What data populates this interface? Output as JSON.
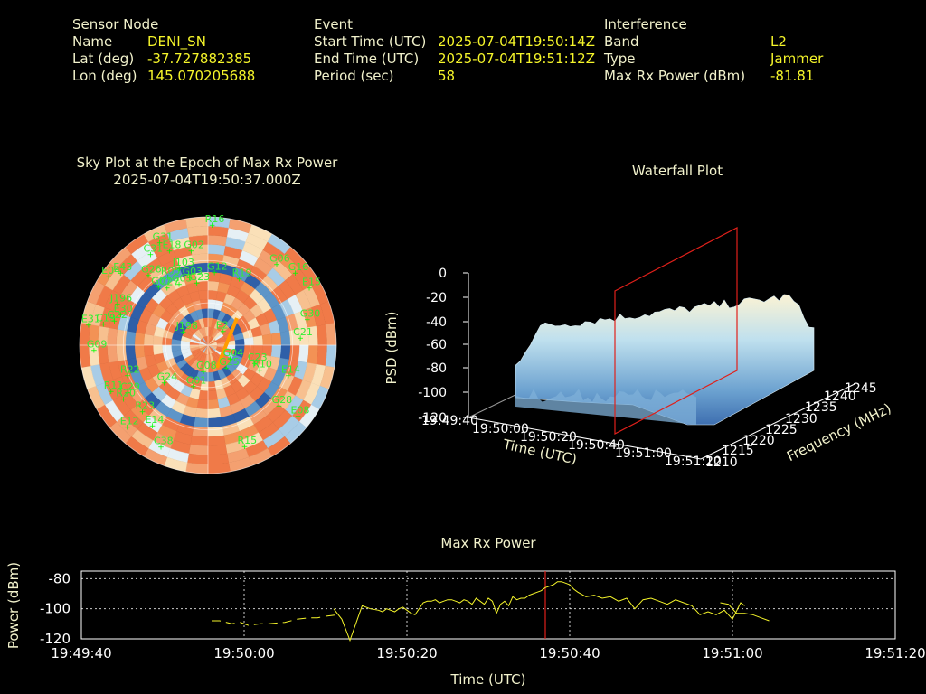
{
  "header": {
    "sensor": {
      "title": "Sensor Node",
      "rows": [
        {
          "label": "Name",
          "value": "DENI_SN"
        },
        {
          "label": "Lat (deg)",
          "value": "-37.727882385"
        },
        {
          "label": "Lon (deg)",
          "value": "145.070205688"
        }
      ]
    },
    "event": {
      "title": "Event",
      "rows": [
        {
          "label": "Start Time (UTC)",
          "value": "2025-07-04T19:50:14Z"
        },
        {
          "label": "End Time (UTC)",
          "value": "2025-07-04T19:51:12Z"
        },
        {
          "label": "Period (sec)",
          "value": "58"
        }
      ]
    },
    "interference": {
      "title": "Interference",
      "rows": [
        {
          "label": "Band",
          "value": "L2"
        },
        {
          "label": "Type",
          "value": "Jammer"
        },
        {
          "label": "Max Rx Power (dBm)",
          "value": "-81.81"
        }
      ]
    }
  },
  "skyplot": {
    "title": "Sky Plot at the Epoch of Max Rx Power",
    "epoch": "2025-07-04T19:50:37.000Z",
    "satellites": [
      {
        "id": "R16",
        "az": 2,
        "el": 5
      },
      {
        "id": "G31",
        "az": 335,
        "el": 10
      },
      {
        "id": "C31",
        "az": 328,
        "el": 14
      },
      {
        "id": "E18",
        "az": 338,
        "el": 18
      },
      {
        "id": "G02",
        "az": 350,
        "el": 22
      },
      {
        "id": "G26",
        "az": 320,
        "el": 25
      },
      {
        "id": "J103",
        "az": 340,
        "el": 32
      },
      {
        "id": "R05",
        "az": 330,
        "el": 34
      },
      {
        "id": "G03",
        "az": 345,
        "el": 40
      },
      {
        "id": "G07",
        "az": 320,
        "el": 36
      },
      {
        "id": "G05",
        "az": 335,
        "el": 42
      },
      {
        "id": "C27",
        "az": 325,
        "el": 40
      },
      {
        "id": "G23",
        "az": 350,
        "el": 45
      },
      {
        "id": "G12",
        "az": 5,
        "el": 38
      },
      {
        "id": "R19",
        "az": 25,
        "el": 38
      },
      {
        "id": "E04",
        "az": 305,
        "el": 5
      },
      {
        "id": "E43",
        "az": 310,
        "el": 10
      },
      {
        "id": "G06",
        "az": 40,
        "el": 15
      },
      {
        "id": "G16",
        "az": 50,
        "el": 10
      },
      {
        "id": "E15",
        "az": 60,
        "el": 8
      },
      {
        "id": "J196",
        "az": 295,
        "el": 20
      },
      {
        "id": "E30",
        "az": 290,
        "el": 25
      },
      {
        "id": "E31",
        "az": 280,
        "el": 5
      },
      {
        "id": "C19",
        "az": 282,
        "el": 15
      },
      {
        "id": "G22",
        "az": 285,
        "el": 22
      },
      {
        "id": "G30",
        "az": 75,
        "el": 18
      },
      {
        "id": "C21",
        "az": 85,
        "el": 25
      },
      {
        "id": "E2",
        "az": 45,
        "el": 75
      },
      {
        "id": "G09",
        "az": 268,
        "el": 10
      },
      {
        "id": "J198",
        "az": 300,
        "el": 70
      },
      {
        "id": "C23",
        "az": 110,
        "el": 55
      },
      {
        "id": "G25",
        "az": 140,
        "el": 70
      },
      {
        "id": "G04",
        "az": 120,
        "el": 72
      },
      {
        "id": "G08",
        "az": 190,
        "el": 72
      },
      {
        "id": "G01",
        "az": 200,
        "el": 60
      },
      {
        "id": "G24",
        "az": 230,
        "el": 50
      },
      {
        "id": "C29",
        "az": 240,
        "el": 25
      },
      {
        "id": "R11",
        "az": 245,
        "el": 15
      },
      {
        "id": "R20",
        "az": 238,
        "el": 20
      },
      {
        "id": "E14",
        "az": 215,
        "el": 22
      },
      {
        "id": "R22",
        "az": 250,
        "el": 30
      },
      {
        "id": "R23",
        "az": 225,
        "el": 25
      },
      {
        "id": "E14",
        "az": 110,
        "el": 30
      },
      {
        "id": "R10",
        "az": 115,
        "el": 50
      },
      {
        "id": "G28",
        "az": 130,
        "el": 25
      },
      {
        "id": "E08",
        "az": 128,
        "el": 10
      },
      {
        "id": "E12",
        "az": 225,
        "el": 10
      },
      {
        "id": "C38",
        "az": 205,
        "el": 12
      },
      {
        "id": "R15",
        "az": 160,
        "el": 15
      }
    ]
  },
  "waterfall": {
    "title": "Waterfall Plot",
    "zlabel": "PSD (dBm)",
    "xlabel": "Time (UTC)",
    "ylabel": "Frequency (MHz)",
    "zticks": [
      "0",
      "-20",
      "-40",
      "-60",
      "-80",
      "-100",
      "-120"
    ],
    "xticks": [
      "19:49:40",
      "19:50:00",
      "19:50:20",
      "19:50:40",
      "19:51:00",
      "19:51:20"
    ],
    "yticks": [
      "1210",
      "1215",
      "1220",
      "1225",
      "1230",
      "1235",
      "1240",
      "1245"
    ]
  },
  "chart_data": {
    "type": "line",
    "title": "Max Rx Power",
    "xlabel": "Time (UTC)",
    "ylabel": "Power (dBm)",
    "xticks": [
      "19:49:40",
      "19:50:00",
      "19:50:20",
      "19:50:40",
      "19:51:00",
      "19:51:20"
    ],
    "xlim_seconds": [
      0,
      100
    ],
    "ylim": [
      -120,
      -75
    ],
    "yticks": [
      "-80",
      "-100",
      "-120"
    ],
    "grid": true,
    "marker_time": "19:50:37",
    "color": "#f5f52a",
    "series": [
      {
        "x": [
          16,
          17,
          18.5,
          19.5,
          20.5,
          22,
          23,
          25,
          26.5,
          28,
          29,
          30,
          31.5
        ],
        "y": [
          -108,
          -108,
          -110,
          -109,
          -111,
          -110,
          -110,
          -109,
          -107,
          -106,
          -106,
          -105,
          -104
        ]
      },
      {
        "x": [
          31,
          32,
          33,
          34.5,
          35.5,
          36.5,
          37,
          37.5,
          38,
          38.5,
          39,
          39.5,
          40,
          40.5,
          41,
          41.5,
          42,
          42.5,
          43,
          43.5,
          44,
          44.5,
          45,
          45.5,
          46,
          46.5,
          47,
          47.5,
          48,
          48.5,
          49,
          49.5,
          50,
          50.5,
          51,
          51.5,
          52,
          52.5,
          53,
          53.5,
          54,
          54.5,
          55,
          55.5,
          56,
          56.5,
          57,
          57.5,
          58,
          58.5,
          59,
          59.5,
          60,
          60.5,
          61,
          62,
          63,
          64,
          65,
          66,
          67,
          68,
          69,
          70,
          71,
          72,
          73,
          74,
          75,
          76,
          77,
          78,
          79,
          80,
          81,
          81.5
        ],
        "y": [
          -100,
          -107,
          -121,
          -98,
          -100,
          -101,
          -102,
          -100,
          -101,
          -102,
          -100,
          -99,
          -101,
          -103,
          -104,
          -100,
          -96,
          -95,
          -95,
          -94,
          -96,
          -95,
          -94,
          -94,
          -95,
          -96,
          -94,
          -95,
          -97,
          -93,
          -95,
          -97,
          -93,
          -95,
          -103,
          -97,
          -95,
          -98,
          -92,
          -94,
          -93,
          -93,
          -91,
          -90,
          -89,
          -88,
          -86,
          -85,
          -84,
          -82,
          -82,
          -83,
          -84,
          -87,
          -89,
          -92,
          -91,
          -93,
          -92,
          -95,
          -93,
          -100,
          -94,
          -93,
          -95,
          -97,
          -94,
          -96,
          -98,
          -104,
          -102,
          -104,
          -101,
          -107,
          -96,
          -98
        ]
      },
      {
        "x": [
          78.5,
          79.5,
          80.5,
          81.5,
          82.5,
          83.5,
          84.5
        ],
        "y": [
          -96,
          -97,
          -103,
          -103,
          -104,
          -106,
          -108
        ]
      }
    ]
  }
}
